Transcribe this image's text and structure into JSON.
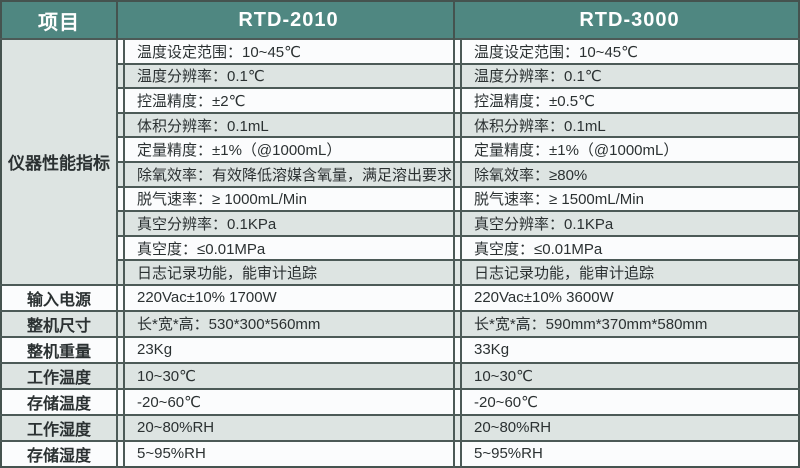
{
  "colors": {
    "header_teal": "#4f8781",
    "row_light": "#fbfcfd",
    "row_shaded": "#dde4e2",
    "border_dark": "#45534f",
    "text": "#2b3132",
    "header_text": "#ffffff"
  },
  "header": {
    "project": "项目",
    "model_a": "RTD-2010",
    "model_b": "RTD-3000"
  },
  "performance": {
    "label": "仪器性能指标",
    "rows": [
      {
        "a": "温度设定范围：10~45℃",
        "b": "温度设定范围：10~45℃"
      },
      {
        "a": "温度分辨率：0.1℃",
        "b": "温度分辨率：0.1℃"
      },
      {
        "a": "控温精度：±2℃",
        "b": "控温精度：±0.5℃"
      },
      {
        "a": "体积分辨率：0.1mL",
        "b": "体积分辨率：0.1mL"
      },
      {
        "a": "定量精度：±1%（@1000mL）",
        "b": "定量精度：±1%（@1000mL）"
      },
      {
        "a": "除氧效率：有效降低溶媒含氧量，满足溶出要求",
        "b": "除氧效率：≥80%"
      },
      {
        "a": "脱气速率：≥ 1000mL/Min",
        "b": "脱气速率：≥ 1500mL/Min"
      },
      {
        "a": "真空分辨率：0.1KPa",
        "b": "真空分辨率：0.1KPa"
      },
      {
        "a": "真空度：≤0.01MPa",
        "b": "真空度：≤0.01MPa"
      },
      {
        "a": "日志记录功能，能审计追踪",
        "b": "日志记录功能，能审计追踪"
      }
    ]
  },
  "general_rows": [
    {
      "label": "输入电源",
      "a": "220Vac±10% 1700W",
      "b": "220Vac±10% 3600W"
    },
    {
      "label": "整机尺寸",
      "a": "长*宽*高：530*300*560mm",
      "b": "长*宽*高：590mm*370mm*580mm"
    },
    {
      "label": "整机重量",
      "a": "23Kg",
      "b": "33Kg"
    },
    {
      "label": "工作温度",
      "a": "10~30℃",
      "b": "10~30℃"
    },
    {
      "label": "存储温度",
      "a": "-20~60℃",
      "b": "-20~60℃"
    },
    {
      "label": "工作湿度",
      "a": "20~80%RH",
      "b": "20~80%RH"
    },
    {
      "label": "存储湿度",
      "a": "5~95%RH",
      "b": "5~95%RH"
    }
  ]
}
